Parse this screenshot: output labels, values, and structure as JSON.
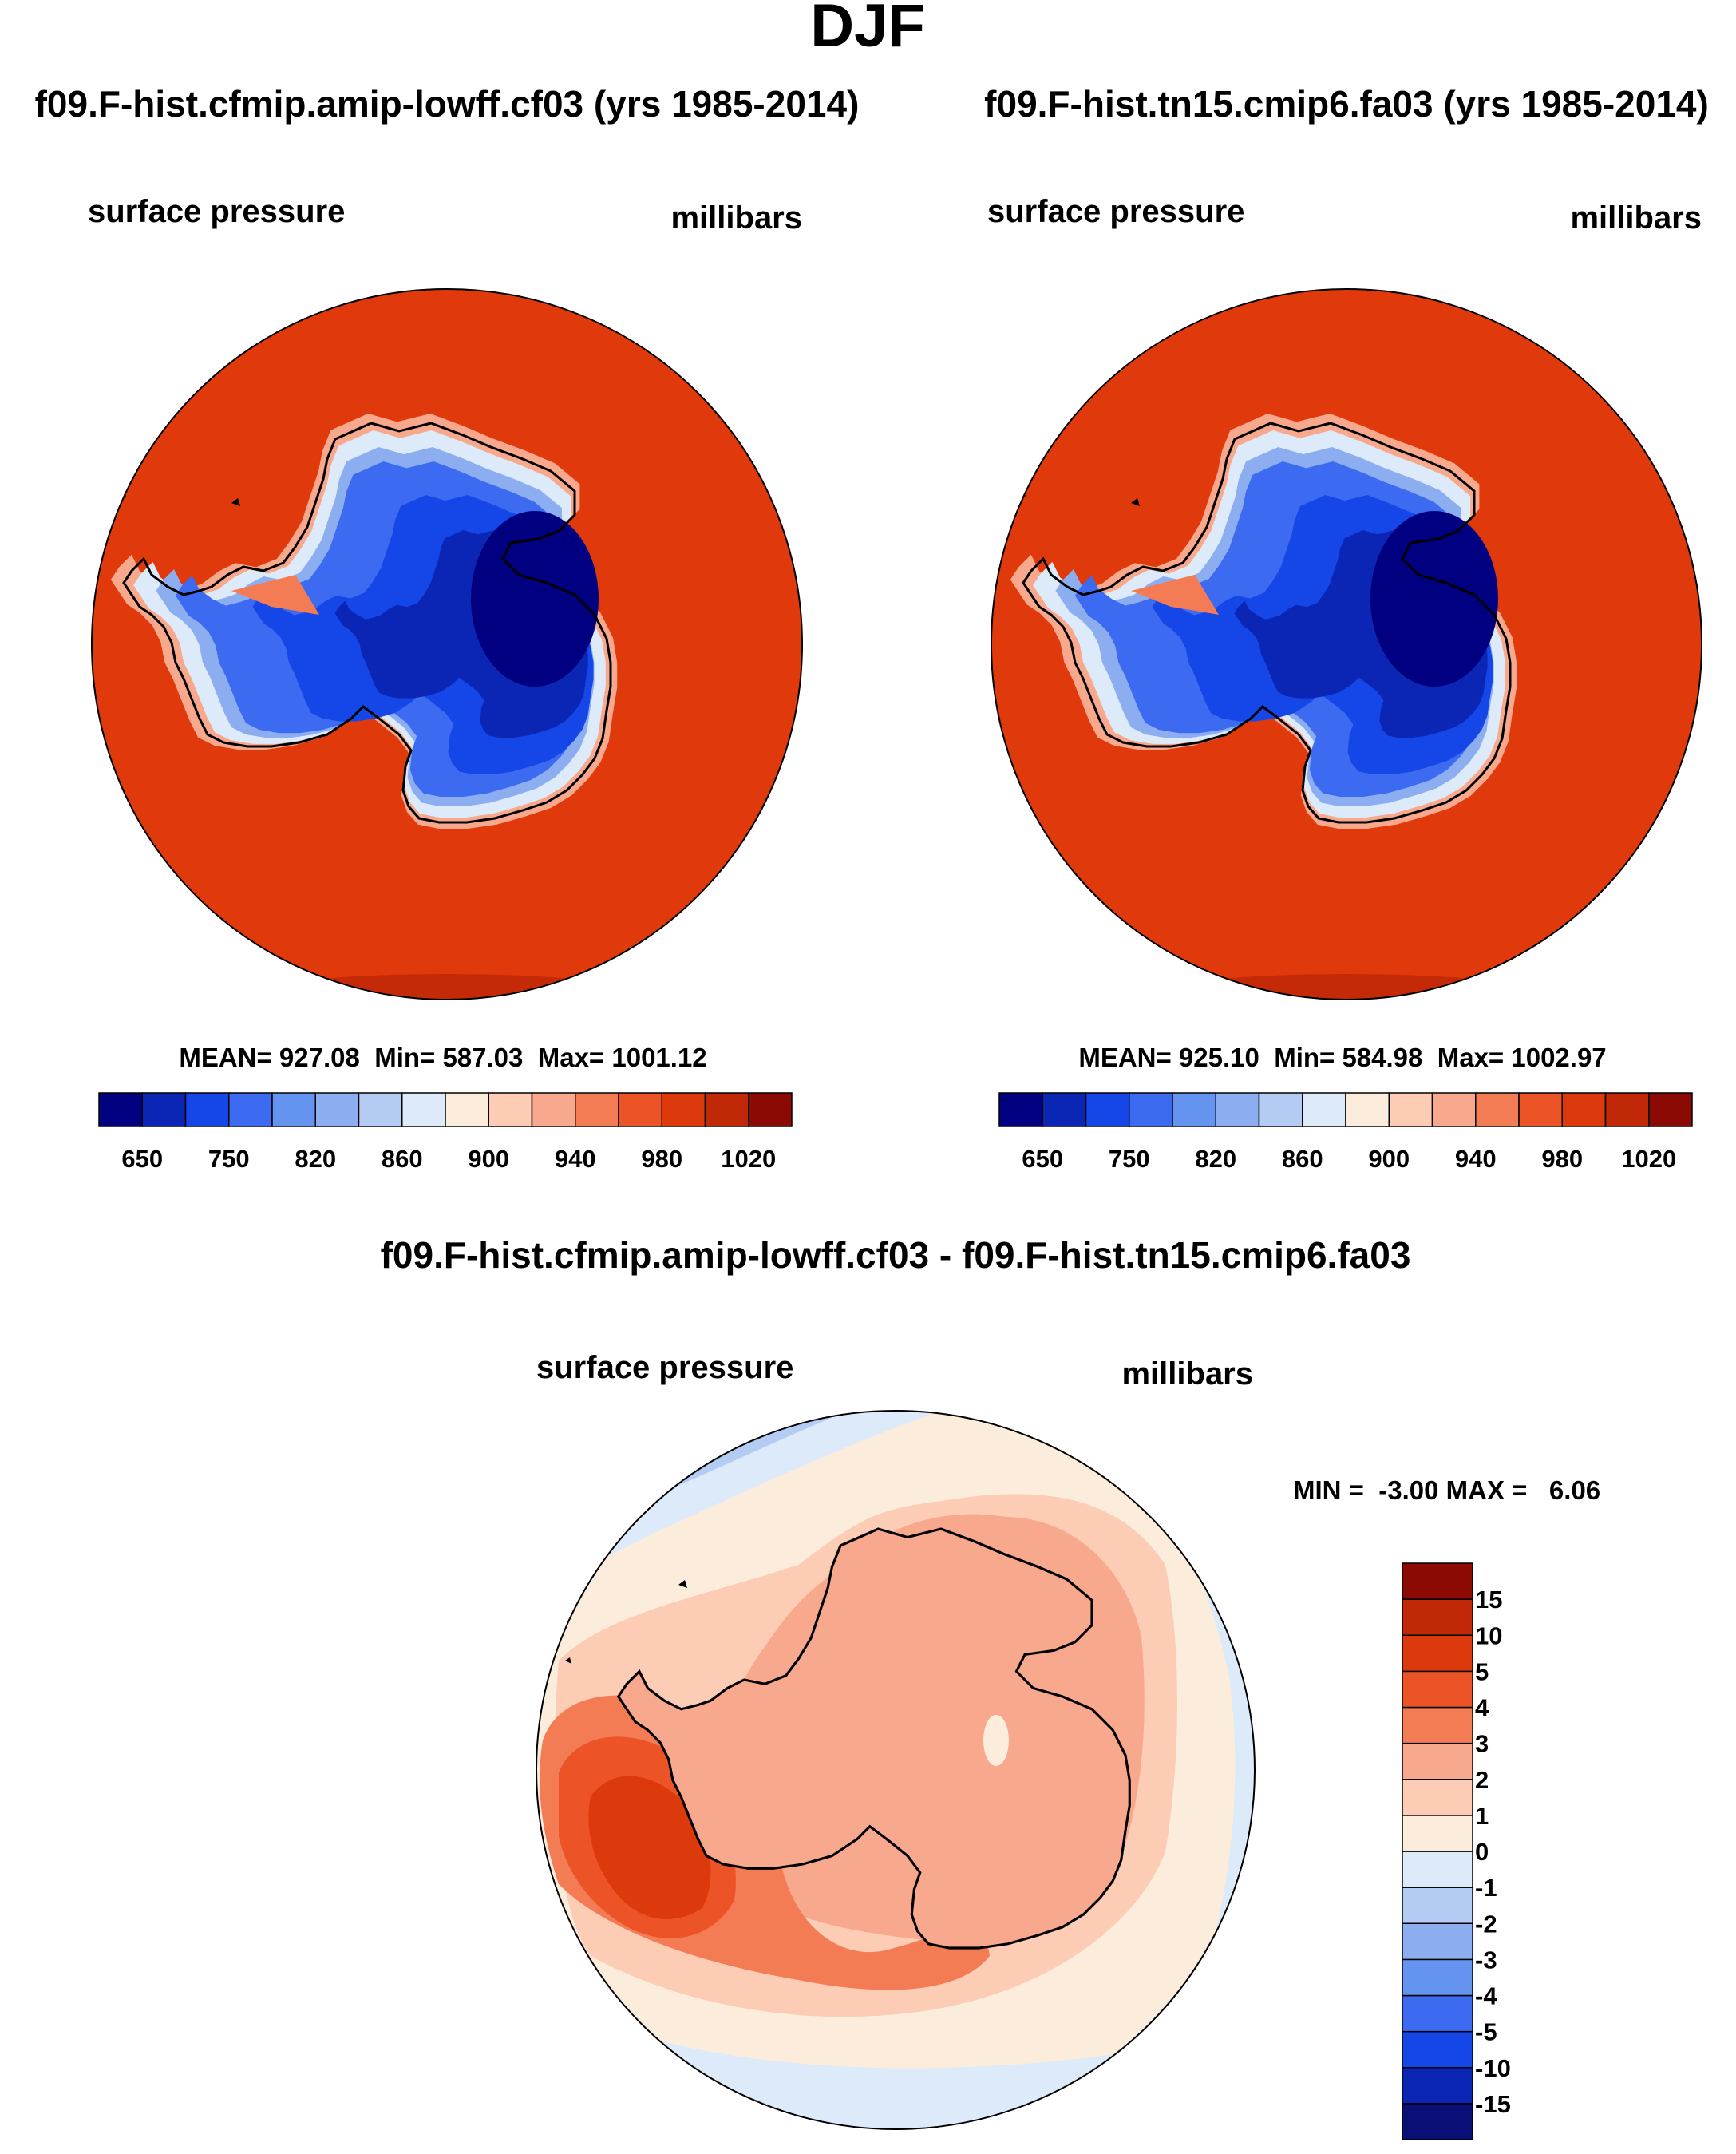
{
  "page_title": "DJF",
  "colors": {
    "ocean": "#E03A0C",
    "ocean_edge": "#C42A08",
    "land_outline": "#000000",
    "abs_palette": [
      "#000080",
      "#0B26B4",
      "#1446E8",
      "#3C6AF0",
      "#6494F0",
      "#8CAEF0",
      "#B4CCF4",
      "#DCEAFA",
      "#FCECDC",
      "#FCCCB4",
      "#F8A88C",
      "#F47C54",
      "#EC5428",
      "#DC3A0C",
      "#C02808",
      "#8C0A04"
    ],
    "diff_palette": [
      "#0A0F78",
      "#0B26B4",
      "#1446E8",
      "#3C6AF0",
      "#6494F0",
      "#8CAEF0",
      "#B4CCF4",
      "#DCEAFA",
      "#FCECDC",
      "#FCCCB4",
      "#F8A88C",
      "#F47C54",
      "#EC5428",
      "#DC3A0C",
      "#C02808",
      "#8C0A04"
    ]
  },
  "chart_data": [
    {
      "type": "heatmap",
      "projection": "south polar stereographic",
      "title": "f09.F-hist.cfmip.amip-lowff.cf03 (yrs 1985-2014)",
      "left_label": "surface pressure",
      "right_label": "millibars",
      "stats": {
        "label": "MEAN= 927.08  Min= 587.03  Max= 1001.12",
        "mean": 927.08,
        "min": 587.03,
        "max": 1001.12
      },
      "colorbar": {
        "orientation": "horizontal",
        "levels": [
          650,
          700,
          750,
          800,
          820,
          840,
          860,
          880,
          900,
          920,
          940,
          960,
          980,
          1000,
          1020
        ],
        "tick_labels": [
          "650",
          "750",
          "820",
          "860",
          "900",
          "940",
          "980",
          "1020"
        ]
      }
    },
    {
      "type": "heatmap",
      "projection": "south polar stereographic",
      "title": "f09.F-hist.tn15.cmip6.fa03 (yrs 1985-2014)",
      "left_label": "surface pressure",
      "right_label": "millibars",
      "stats": {
        "label": "MEAN= 925.10  Min= 584.98  Max= 1002.97",
        "mean": 925.1,
        "min": 584.98,
        "max": 1002.97
      },
      "colorbar": {
        "orientation": "horizontal",
        "levels": [
          650,
          700,
          750,
          800,
          820,
          840,
          860,
          880,
          900,
          920,
          940,
          960,
          980,
          1000,
          1020
        ],
        "tick_labels": [
          "650",
          "750",
          "820",
          "860",
          "900",
          "940",
          "980",
          "1020"
        ]
      }
    },
    {
      "type": "heatmap",
      "projection": "south polar stereographic",
      "title": "f09.F-hist.cfmip.amip-lowff.cf03 - f09.F-hist.tn15.cmip6.fa03",
      "left_label": "surface pressure",
      "right_label": "millibars",
      "stats": {
        "label": "MIN =  -3.00 MAX =   6.06",
        "min": -3.0,
        "max": 6.06
      },
      "colorbar": {
        "orientation": "vertical",
        "levels": [
          -15,
          -10,
          -5,
          -4,
          -3,
          -2,
          -1,
          0,
          1,
          2,
          3,
          4,
          5,
          10,
          15
        ],
        "tick_labels": [
          "-15",
          "-10",
          "-5",
          "-4",
          "-3",
          "-2",
          "-1",
          "0",
          "1",
          "2",
          "3",
          "4",
          "5",
          "10",
          "15"
        ]
      }
    }
  ]
}
